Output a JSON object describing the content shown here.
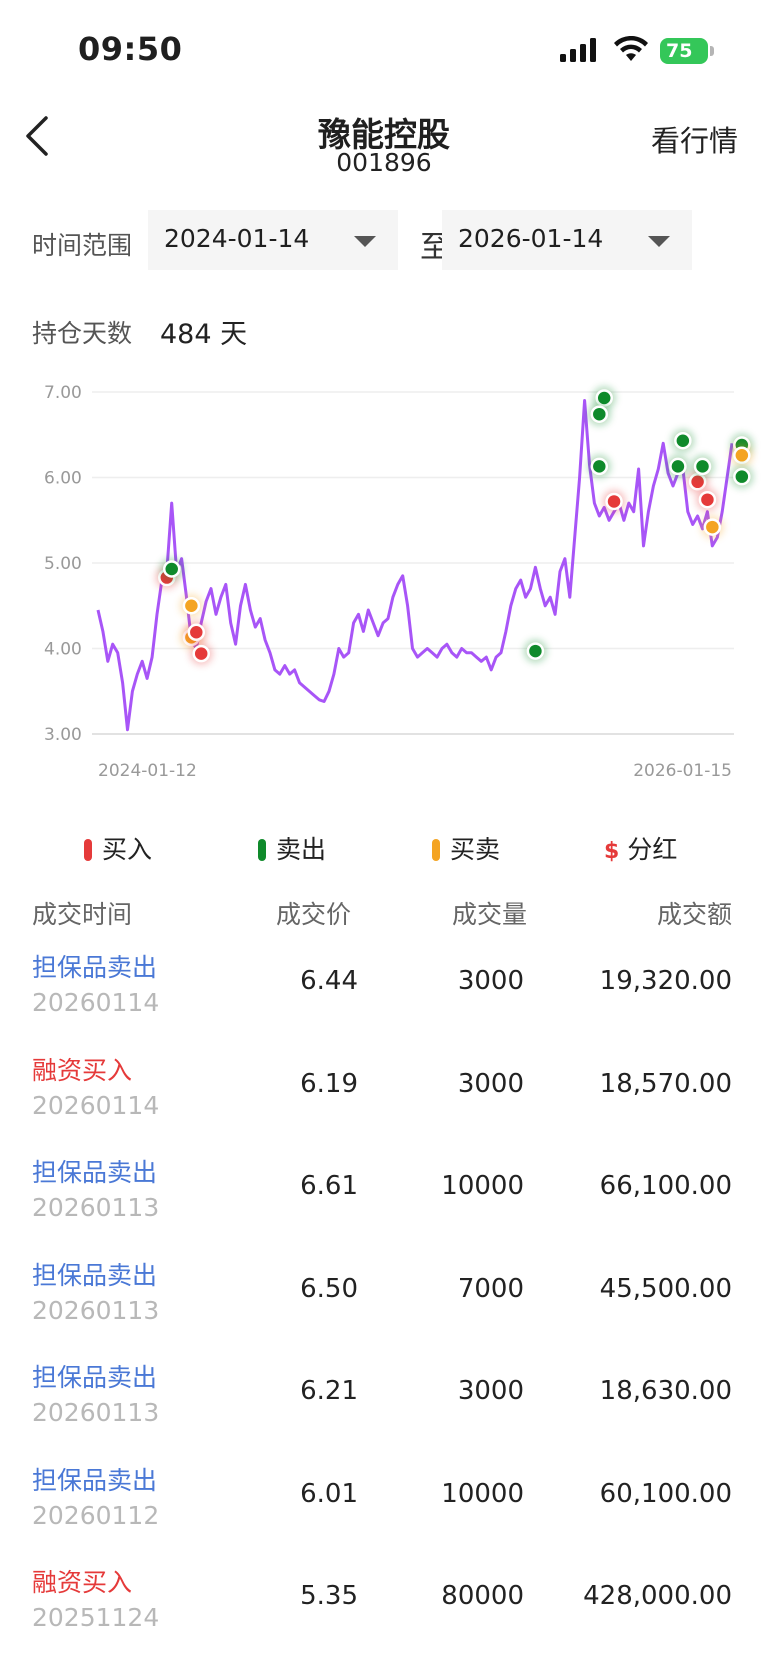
{
  "status_bar": {
    "time": "09:50",
    "battery": "75"
  },
  "nav": {
    "title": "豫能控股",
    "code": "001896",
    "market_label": "看行情"
  },
  "range": {
    "label": "时间范围",
    "start": "2024-01-14",
    "to": "至",
    "end": "2026-01-14"
  },
  "holding": {
    "label": "持仓天数",
    "value": "484 天"
  },
  "chart_data": {
    "type": "line",
    "ylim": [
      3.0,
      7.0
    ],
    "yticks": [
      "7.00",
      "6.00",
      "5.00",
      "4.00",
      "3.00"
    ],
    "x_labels": [
      "2024-01-12",
      "2026-01-15"
    ],
    "line_color": "#a855f7",
    "values": [
      4.45,
      4.2,
      3.85,
      4.05,
      3.95,
      3.6,
      3.05,
      3.5,
      3.7,
      3.85,
      3.65,
      3.9,
      4.4,
      4.8,
      4.9,
      5.7,
      4.9,
      5.05,
      4.6,
      4.1,
      4.0,
      4.3,
      4.55,
      4.7,
      4.4,
      4.6,
      4.75,
      4.3,
      4.05,
      4.5,
      4.75,
      4.45,
      4.25,
      4.35,
      4.1,
      3.95,
      3.75,
      3.7,
      3.8,
      3.7,
      3.75,
      3.6,
      3.55,
      3.5,
      3.45,
      3.4,
      3.38,
      3.5,
      3.7,
      4.0,
      3.9,
      3.95,
      4.3,
      4.4,
      4.2,
      4.45,
      4.3,
      4.15,
      4.3,
      4.35,
      4.6,
      4.75,
      4.85,
      4.5,
      4.0,
      3.9,
      3.95,
      4.0,
      3.95,
      3.9,
      4.0,
      4.05,
      3.95,
      3.9,
      4.0,
      3.95,
      3.95,
      3.9,
      3.85,
      3.9,
      3.75,
      3.9,
      3.95,
      4.2,
      4.5,
      4.7,
      4.8,
      4.6,
      4.7,
      4.95,
      4.7,
      4.5,
      4.6,
      4.4,
      4.9,
      5.05,
      4.6,
      5.3,
      6.0,
      6.9,
      6.15,
      5.7,
      5.55,
      5.65,
      5.5,
      5.6,
      5.7,
      5.5,
      5.7,
      5.6,
      6.1,
      5.2,
      5.6,
      5.9,
      6.1,
      6.4,
      6.05,
      5.9,
      6.05,
      6.1,
      5.6,
      5.45,
      5.55,
      5.4,
      5.6,
      5.2,
      5.3,
      5.6,
      6.0,
      6.4
    ],
    "markers": [
      {
        "i": 14,
        "v": 4.83,
        "kind": "buy"
      },
      {
        "i": 15,
        "v": 4.93,
        "kind": "sell"
      },
      {
        "i": 19,
        "v": 4.5,
        "kind": "both"
      },
      {
        "i": 19,
        "v": 4.13,
        "kind": "both"
      },
      {
        "i": 20,
        "v": 4.19,
        "kind": "buy"
      },
      {
        "i": 21,
        "v": 3.94,
        "kind": "buy"
      },
      {
        "i": 89,
        "v": 3.97,
        "kind": "sell"
      },
      {
        "i": 103,
        "v": 6.93,
        "kind": "sell"
      },
      {
        "i": 102,
        "v": 6.74,
        "kind": "sell"
      },
      {
        "i": 102,
        "v": 6.13,
        "kind": "sell"
      },
      {
        "i": 105,
        "v": 5.72,
        "kind": "buy"
      },
      {
        "i": 118,
        "v": 6.13,
        "kind": "sell"
      },
      {
        "i": 119,
        "v": 6.43,
        "kind": "sell"
      },
      {
        "i": 122,
        "v": 5.95,
        "kind": "buy"
      },
      {
        "i": 123,
        "v": 6.13,
        "kind": "sell"
      },
      {
        "i": 124,
        "v": 5.74,
        "kind": "buy"
      },
      {
        "i": 125,
        "v": 5.42,
        "kind": "both"
      },
      {
        "i": 131,
        "v": 6.38,
        "kind": "sell"
      },
      {
        "i": 131,
        "v": 6.26,
        "kind": "both"
      },
      {
        "i": 131,
        "v": 6.01,
        "kind": "sell"
      }
    ]
  },
  "colors": {
    "buy": "#e53a3a",
    "sell": "#0f8a2b",
    "both": "#f4a422",
    "dividend": "#e53a3a",
    "sell_text": "#4a78d6"
  },
  "legend": {
    "buy": "买入",
    "sell": "卖出",
    "both": "买卖",
    "dividend": "分红",
    "dividend_symbol": "$"
  },
  "table": {
    "headers": [
      "成交时间",
      "成交价",
      "成交量",
      "成交额"
    ],
    "rows": [
      {
        "type": "担保品卖出",
        "date": "20260114",
        "price": "6.44",
        "qty": "3000",
        "amount": "19,320.00",
        "side": "sell"
      },
      {
        "type": "融资买入",
        "date": "20260114",
        "price": "6.19",
        "qty": "3000",
        "amount": "18,570.00",
        "side": "buy"
      },
      {
        "type": "担保品卖出",
        "date": "20260113",
        "price": "6.61",
        "qty": "10000",
        "amount": "66,100.00",
        "side": "sell"
      },
      {
        "type": "担保品卖出",
        "date": "20260113",
        "price": "6.50",
        "qty": "7000",
        "amount": "45,500.00",
        "side": "sell"
      },
      {
        "type": "担保品卖出",
        "date": "20260113",
        "price": "6.21",
        "qty": "3000",
        "amount": "18,630.00",
        "side": "sell"
      },
      {
        "type": "担保品卖出",
        "date": "20260112",
        "price": "6.01",
        "qty": "10000",
        "amount": "60,100.00",
        "side": "sell"
      },
      {
        "type": "融资买入",
        "date": "20251124",
        "price": "5.35",
        "qty": "80000",
        "amount": "428,000.00",
        "side": "buy"
      }
    ]
  }
}
